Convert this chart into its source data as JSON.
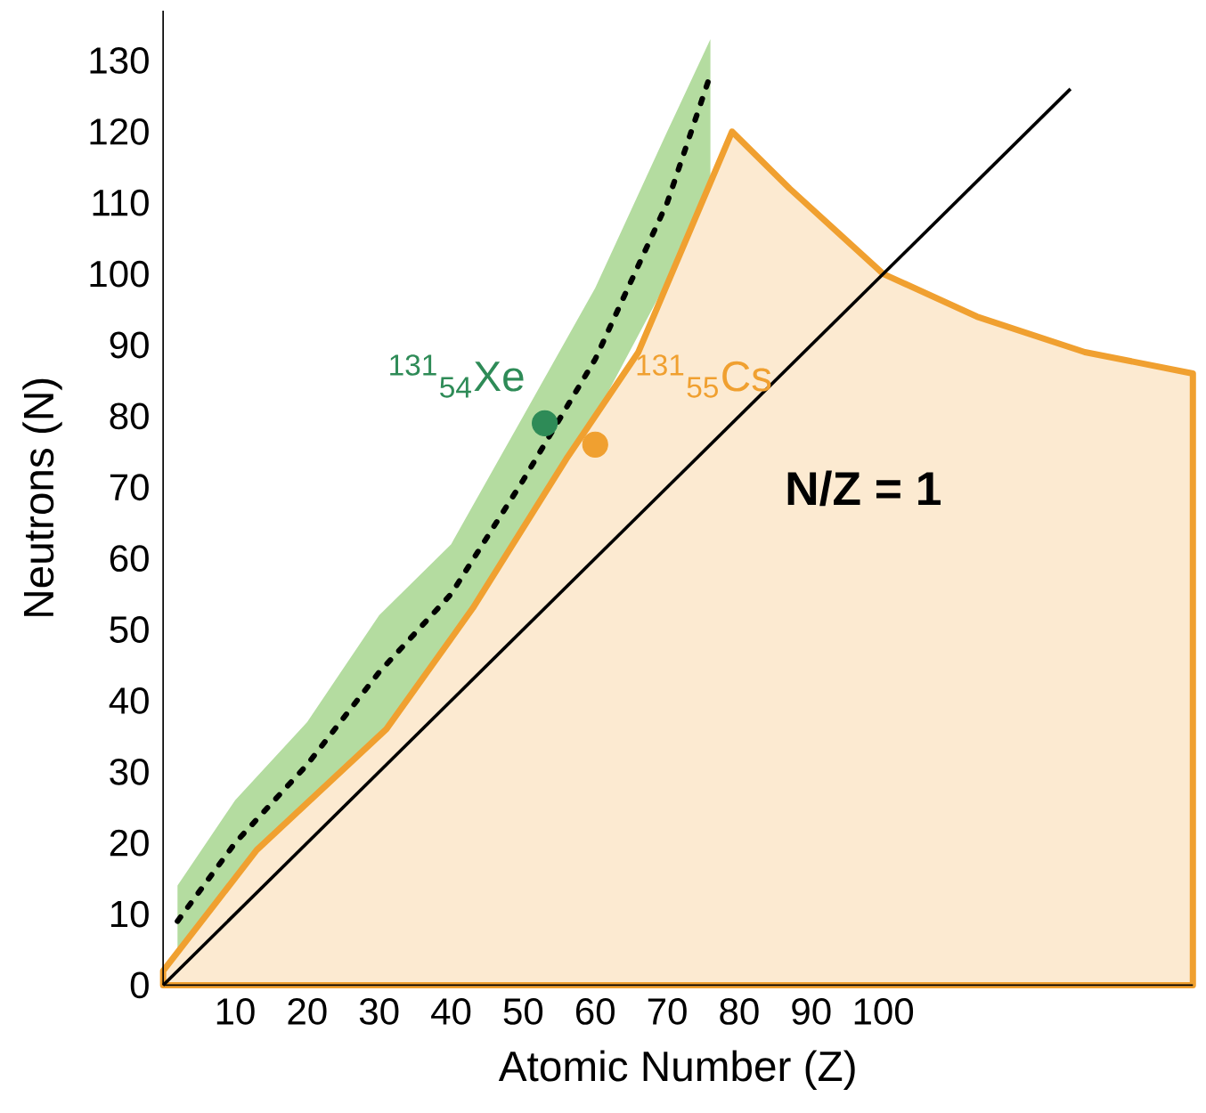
{
  "chart_data": {
    "type": "line",
    "xlabel": "Atomic Number (Z)",
    "ylabel": "Neutrons (N)",
    "xlim": [
      0,
      143
    ],
    "ylim": [
      0,
      137
    ],
    "xticks": [
      10,
      20,
      30,
      40,
      50,
      60,
      70,
      80,
      90,
      100
    ],
    "yticks": [
      0,
      10,
      20,
      30,
      40,
      50,
      60,
      70,
      80,
      90,
      100,
      110,
      120,
      130
    ],
    "grid": false,
    "series": [
      {
        "type": "area",
        "color": "#f0a030",
        "x": [
          0,
          13,
          31,
          43,
          56,
          66,
          79,
          87,
          100,
          113,
          128,
          143
        ],
        "values": [
          2,
          19,
          36,
          53,
          74,
          89,
          120,
          112,
          100,
          94,
          89,
          86
        ]
      },
      {
        "type": "line",
        "color": "#000000",
        "line_style": "dotted",
        "x": [
          2,
          10,
          20,
          30,
          40,
          50,
          60,
          70,
          76
        ],
        "values": [
          9,
          20,
          31,
          44,
          55,
          71,
          88,
          110,
          128
        ],
        "lower": [
          5,
          15,
          26,
          35,
          49,
          64,
          80,
          99,
          113
        ],
        "upper": [
          14,
          26,
          37,
          52,
          62,
          80,
          98,
          120,
          133
        ]
      },
      {
        "color": "#000000",
        "x": [
          0,
          126
        ],
        "values": [
          0,
          126
        ]
      },
      {
        "type": "scatter",
        "color": "#2e8b57",
        "x": [
          53
        ],
        "values": [
          79
        ]
      },
      {
        "type": "scatter",
        "color": "#f0a030",
        "x": [
          60
        ],
        "values": [
          76
        ]
      }
    ],
    "annotations": [
      "$^{131}$$_{54}$Xe",
      "$^{131}$$_{55}$Cs",
      "**N/Z = 1**"
    ]
  }
}
